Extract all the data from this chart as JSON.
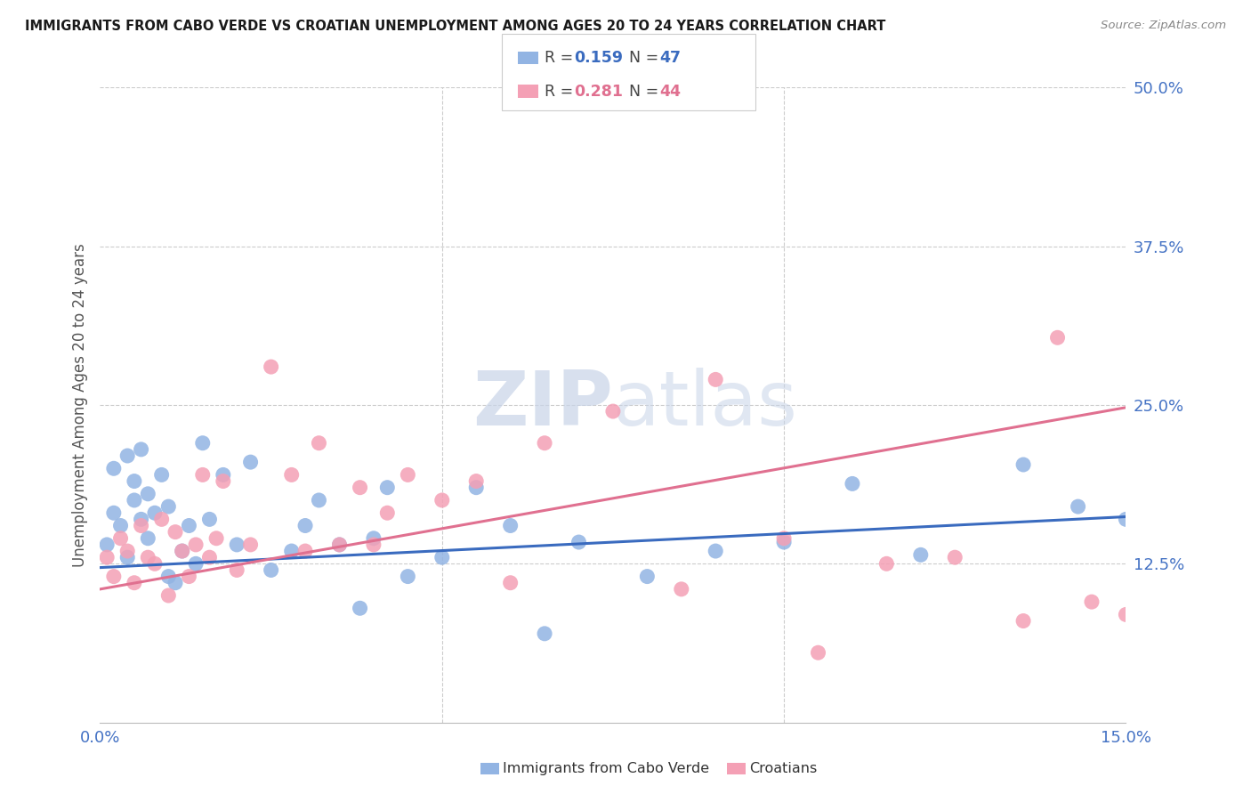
{
  "title": "IMMIGRANTS FROM CABO VERDE VS CROATIAN UNEMPLOYMENT AMONG AGES 20 TO 24 YEARS CORRELATION CHART",
  "source": "Source: ZipAtlas.com",
  "ylabel": "Unemployment Among Ages 20 to 24 years",
  "x_min": 0.0,
  "x_max": 0.15,
  "y_min": 0.0,
  "y_max": 0.5,
  "blue_R": "0.159",
  "blue_N": "47",
  "pink_R": "0.281",
  "pink_N": "44",
  "scatter_blue_color": "#92b4e3",
  "scatter_pink_color": "#f4a0b5",
  "line_blue_color": "#3a6bbf",
  "line_pink_color": "#e07090",
  "label_blue": "Immigrants from Cabo Verde",
  "label_pink": "Croatians",
  "watermark": "ZIPatlas",
  "background_color": "#ffffff",
  "grid_color": "#cccccc",
  "blue_scatter_x": [
    0.001,
    0.002,
    0.002,
    0.003,
    0.004,
    0.004,
    0.005,
    0.005,
    0.006,
    0.006,
    0.007,
    0.007,
    0.008,
    0.009,
    0.01,
    0.01,
    0.011,
    0.012,
    0.013,
    0.014,
    0.015,
    0.016,
    0.018,
    0.02,
    0.022,
    0.025,
    0.028,
    0.03,
    0.032,
    0.035,
    0.038,
    0.04,
    0.042,
    0.045,
    0.05,
    0.055,
    0.06,
    0.065,
    0.07,
    0.08,
    0.09,
    0.1,
    0.11,
    0.12,
    0.135,
    0.143,
    0.15
  ],
  "blue_scatter_y": [
    0.14,
    0.165,
    0.2,
    0.155,
    0.13,
    0.21,
    0.175,
    0.19,
    0.16,
    0.215,
    0.145,
    0.18,
    0.165,
    0.195,
    0.115,
    0.17,
    0.11,
    0.135,
    0.155,
    0.125,
    0.22,
    0.16,
    0.195,
    0.14,
    0.205,
    0.12,
    0.135,
    0.155,
    0.175,
    0.14,
    0.09,
    0.145,
    0.185,
    0.115,
    0.13,
    0.185,
    0.155,
    0.07,
    0.142,
    0.115,
    0.135,
    0.142,
    0.188,
    0.132,
    0.203,
    0.17,
    0.16
  ],
  "pink_scatter_x": [
    0.001,
    0.002,
    0.003,
    0.004,
    0.005,
    0.006,
    0.007,
    0.008,
    0.009,
    0.01,
    0.011,
    0.012,
    0.013,
    0.014,
    0.015,
    0.016,
    0.017,
    0.018,
    0.02,
    0.022,
    0.025,
    0.028,
    0.03,
    0.032,
    0.035,
    0.038,
    0.04,
    0.042,
    0.045,
    0.05,
    0.055,
    0.06,
    0.065,
    0.075,
    0.085,
    0.09,
    0.1,
    0.105,
    0.115,
    0.125,
    0.135,
    0.14,
    0.145,
    0.15
  ],
  "pink_scatter_y": [
    0.13,
    0.115,
    0.145,
    0.135,
    0.11,
    0.155,
    0.13,
    0.125,
    0.16,
    0.1,
    0.15,
    0.135,
    0.115,
    0.14,
    0.195,
    0.13,
    0.145,
    0.19,
    0.12,
    0.14,
    0.28,
    0.195,
    0.135,
    0.22,
    0.14,
    0.185,
    0.14,
    0.165,
    0.195,
    0.175,
    0.19,
    0.11,
    0.22,
    0.245,
    0.105,
    0.27,
    0.145,
    0.055,
    0.125,
    0.13,
    0.08,
    0.303,
    0.095,
    0.085
  ]
}
